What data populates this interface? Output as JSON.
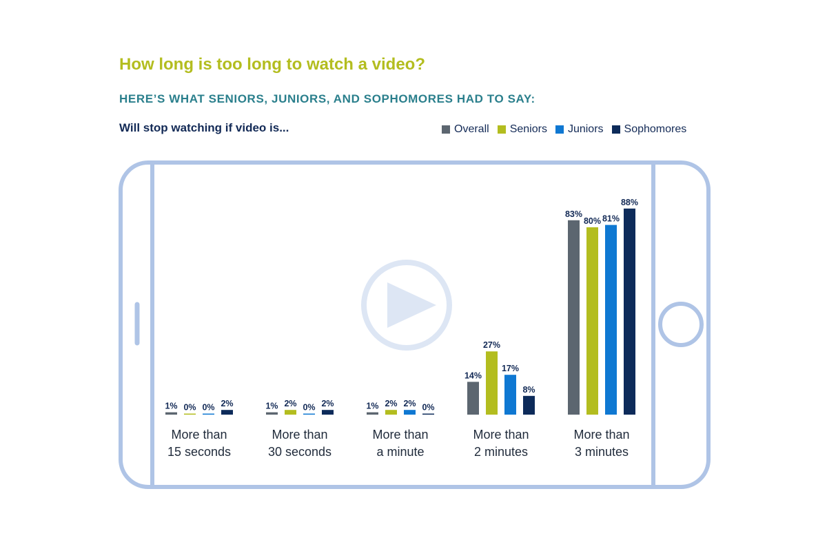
{
  "title": "How long is too long to watch a video?",
  "subtitle": "HERE’S WHAT SENIORS, JUNIORS, AND SOPHOMORES HAD TO SAY:",
  "question": "Will stop watching if video is...",
  "colors": {
    "title": "#b3bd1f",
    "subtitle": "#2a7f8c",
    "text": "#132a56",
    "phone_outline": "#afc4e6",
    "play_icon": "#dde6f4"
  },
  "icons": [
    "play-icon",
    "home-button-icon",
    "phone-frame-icon"
  ],
  "legend": [
    {
      "label": "Overall",
      "color": "#5c6670"
    },
    {
      "label": "Seniors",
      "color": "#b3bd1f"
    },
    {
      "label": "Juniors",
      "color": "#0f78d2"
    },
    {
      "label": "Sophomores",
      "color": "#0d2b5a"
    }
  ],
  "chart_data": {
    "type": "bar",
    "categories": [
      [
        "More than",
        "15 seconds"
      ],
      [
        "More than",
        "30 seconds"
      ],
      [
        "More than",
        "a minute"
      ],
      [
        "More than",
        "2 minutes"
      ],
      [
        "More than",
        "3 minutes"
      ]
    ],
    "series": [
      {
        "name": "Overall",
        "values": [
          1,
          1,
          1,
          14,
          83
        ],
        "labels": [
          "1%",
          "1%",
          "1%",
          "14%",
          "83%"
        ]
      },
      {
        "name": "Seniors",
        "values": [
          0,
          2,
          2,
          27,
          80
        ],
        "labels": [
          "0%",
          "2%",
          "2%",
          "27%",
          "80%"
        ]
      },
      {
        "name": "Juniors",
        "values": [
          0,
          0,
          2,
          17,
          81
        ],
        "labels": [
          "0%",
          "0%",
          "2%",
          "17%",
          "81%"
        ]
      },
      {
        "name": "Sophomores",
        "values": [
          2,
          2,
          0,
          8,
          88
        ],
        "labels": [
          "2%",
          "2%",
          "0%",
          "8%",
          "88%"
        ]
      }
    ],
    "ylim": [
      0,
      100
    ],
    "unit": "%",
    "grid": false,
    "legend_position": "top-right"
  }
}
